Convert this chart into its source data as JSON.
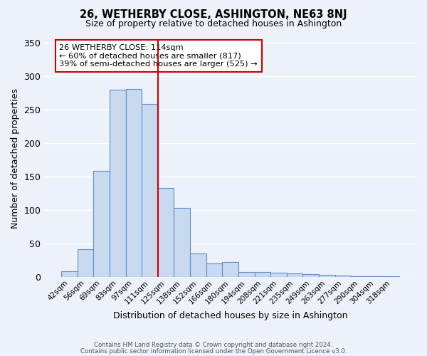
{
  "title": "26, WETHERBY CLOSE, ASHINGTON, NE63 8NJ",
  "subtitle": "Size of property relative to detached houses in Ashington",
  "xlabel": "Distribution of detached houses by size in Ashington",
  "ylabel": "Number of detached properties",
  "bar_labels": [
    "42sqm",
    "56sqm",
    "69sqm",
    "83sqm",
    "97sqm",
    "111sqm",
    "125sqm",
    "138sqm",
    "152sqm",
    "166sqm",
    "180sqm",
    "194sqm",
    "208sqm",
    "221sqm",
    "235sqm",
    "249sqm",
    "263sqm",
    "277sqm",
    "290sqm",
    "304sqm",
    "318sqm"
  ],
  "bar_values": [
    9,
    41,
    158,
    280,
    281,
    258,
    133,
    103,
    35,
    20,
    22,
    8,
    7,
    6,
    5,
    4,
    3,
    2,
    1,
    1,
    1
  ],
  "bar_color": "#c9d9f0",
  "bar_edge_color": "#5b8fc9",
  "marker_bin_index": 5,
  "marker_line_color": "#cc0000",
  "annotation_text": "26 WETHERBY CLOSE: 114sqm\n← 60% of detached houses are smaller (817)\n39% of semi-detached houses are larger (525) →",
  "annotation_box_color": "#ffffff",
  "annotation_box_edge_color": "#cc0000",
  "ylim": [
    0,
    355
  ],
  "yticks": [
    0,
    50,
    100,
    150,
    200,
    250,
    300,
    350
  ],
  "background_color": "#edf2fa",
  "grid_color": "#ffffff",
  "footer_line1": "Contains HM Land Registry data © Crown copyright and database right 2024.",
  "footer_line2": "Contains public sector information licensed under the Open Government Licence v3.0."
}
